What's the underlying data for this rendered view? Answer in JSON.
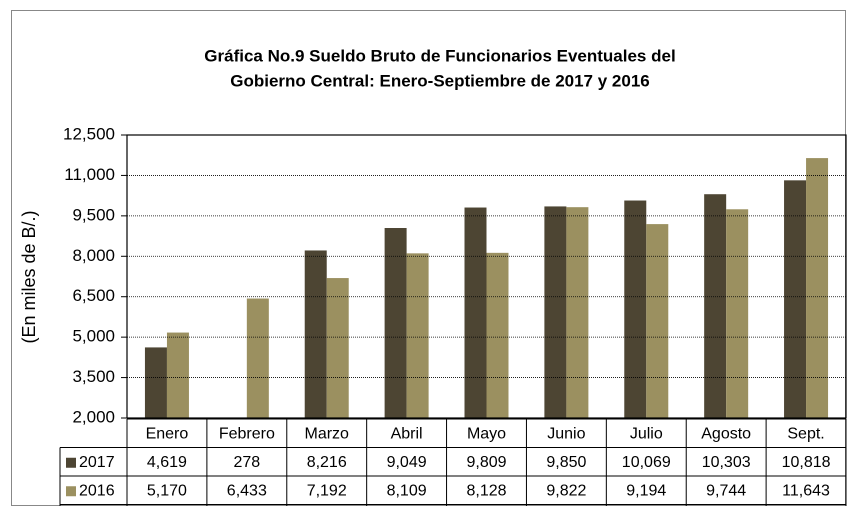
{
  "chart_data": {
    "type": "bar",
    "title": [
      "Gráfica No.9 Sueldo Bruto de Funcionarios Eventuales del",
      "Gobierno Central: Enero-Septiembre de 2017 y 2016"
    ],
    "ylabel": "(En miles de B/.)",
    "categories": [
      "Enero",
      "Febrero",
      "Marzo",
      "Abril",
      "Mayo",
      "Junio",
      "Julio",
      "Agosto",
      "Sept."
    ],
    "series": [
      {
        "name": "2017",
        "color": "#4d4533",
        "values": [
          4619,
          278,
          8216,
          9049,
          9809,
          9850,
          10069,
          10303,
          10818
        ],
        "value_labels": [
          "4,619",
          "278",
          "8,216",
          "9,049",
          "9,809",
          "9,850",
          "10,069",
          "10,303",
          "10,818"
        ]
      },
      {
        "name": "2016",
        "color": "#9b9060",
        "values": [
          5170,
          6433,
          7192,
          8109,
          8128,
          9822,
          9194,
          9744,
          11643
        ],
        "value_labels": [
          "5,170",
          "6,433",
          "7,192",
          "8,109",
          "8,128",
          "9,822",
          "9,194",
          "9,744",
          "11,643"
        ]
      }
    ],
    "ylim": [
      2000,
      12500
    ],
    "yticks": [
      {
        "value": 2000,
        "label": "2,000"
      },
      {
        "value": 3500,
        "label": "3,500"
      },
      {
        "value": 5000,
        "label": "5,000"
      },
      {
        "value": 6500,
        "label": "6,500"
      },
      {
        "value": 8000,
        "label": "8,000"
      },
      {
        "value": 9500,
        "label": "9,500"
      },
      {
        "value": 11000,
        "label": "11,000"
      },
      {
        "value": 12500,
        "label": "12,500"
      }
    ],
    "grid": true
  }
}
